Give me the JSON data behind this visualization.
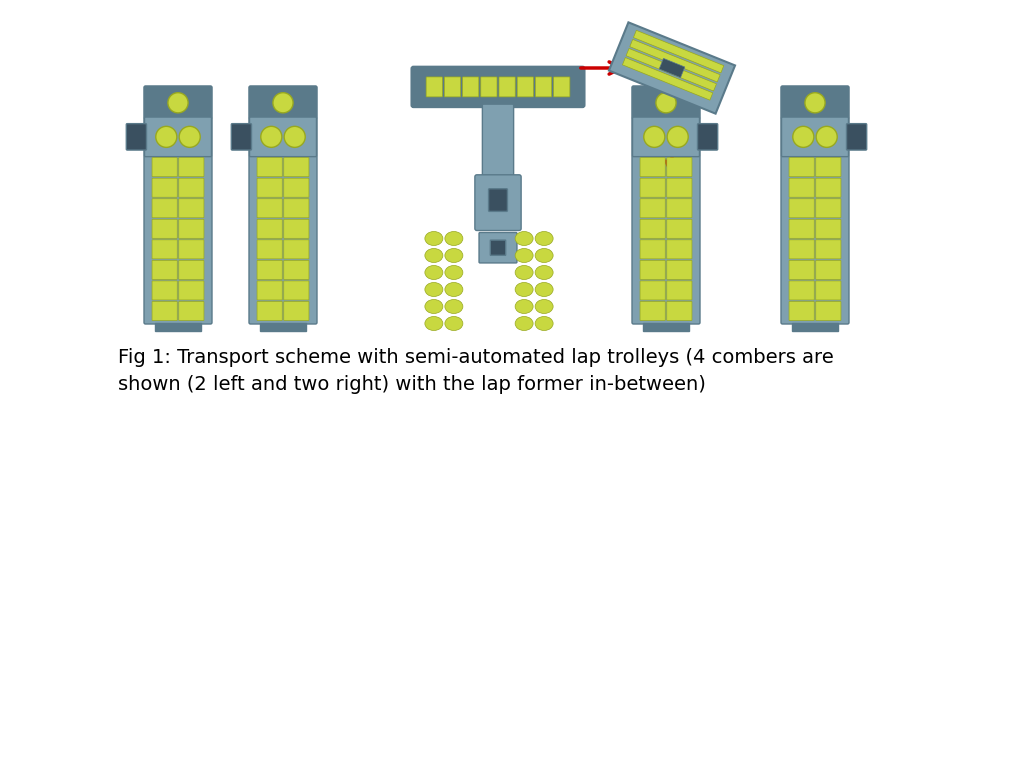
{
  "background_color": "#ffffff",
  "steel_blue": "#7fa0b0",
  "steel_blue_dark": "#5a7a8a",
  "steel_blue_mid": "#6890a0",
  "yellow_green": "#c8d840",
  "yellow_green_dark": "#98a820",
  "dark_gray": "#3a5060",
  "dark_navy": "#2a3a48",
  "arrow_color": "#cc0000",
  "caption_line1": "Fig 1: Transport scheme with semi-automated lap trolleys (4 combers are",
  "caption_line2": "shown (2 left and two right) with the lap former in-between)",
  "caption_fontsize": 14
}
